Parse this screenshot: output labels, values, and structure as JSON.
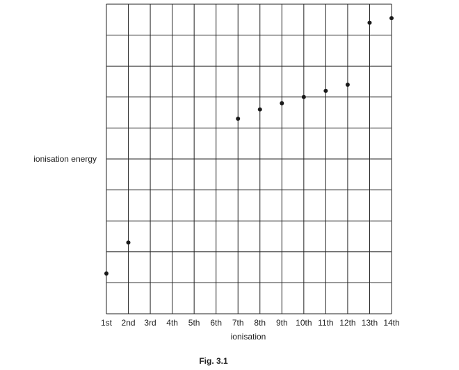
{
  "chart_data": {
    "type": "scatter",
    "title": "",
    "xlabel": "ionisation",
    "ylabel": "ionisation energy",
    "caption": "Fig. 3.1",
    "categories": [
      "1st",
      "2nd",
      "3rd",
      "4th",
      "5th",
      "6th",
      "7th",
      "8th",
      "9th",
      "10th",
      "11th",
      "12th",
      "13th",
      "14th"
    ],
    "ylim": [
      0,
      10
    ],
    "grid": true,
    "legend": "none",
    "y_tick_labels": false,
    "series": [
      {
        "values": [
          1.3,
          2.3,
          null,
          null,
          null,
          null,
          6.3,
          6.6,
          6.8,
          7.0,
          7.2,
          7.4,
          9.4,
          9.55
        ]
      }
    ],
    "colors": {
      "grid": "#222222",
      "point": "#1a1a1a"
    }
  }
}
